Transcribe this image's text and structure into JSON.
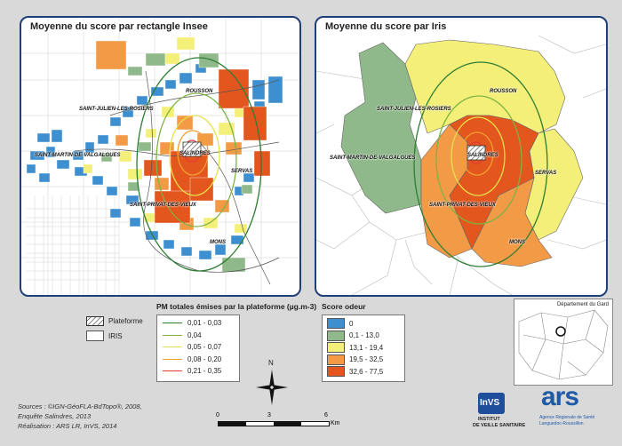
{
  "left_panel": {
    "title": "Moyenne du score par rectangle Insee"
  },
  "right_panel": {
    "title": "Moyenne du score par Iris"
  },
  "places": {
    "rousson": "ROUSSON",
    "saint_julien": "SAINT-JULIEN-LES-ROSIERS",
    "saint_martin": "SAINT-MARTIN-DE-VALGALGUES",
    "salindres": "SALINDRES",
    "servas": "SERVAS",
    "saint_privat": "SAINT-PRIVAT-DES-VIEUX",
    "mons": "MONS"
  },
  "legend_area": {
    "plateforme": "Plateforme",
    "iris": "IRIS"
  },
  "legend_pm": {
    "title": "PM totales émises par la plateforme (µg.m-3)",
    "items": [
      {
        "label": "0,01 - 0,03",
        "color": "#2e7d32"
      },
      {
        "label": "0,04",
        "color": "#7cb342"
      },
      {
        "label": "0,05 - 0,07",
        "color": "#e5e14a"
      },
      {
        "label": "0,08 - 0,20",
        "color": "#f0a030"
      },
      {
        "label": "0,21 - 0,35",
        "color": "#e53935"
      }
    ]
  },
  "legend_score": {
    "title": "Score odeur",
    "items": [
      {
        "label": "0",
        "color": "#3e8fd0"
      },
      {
        "label": "0,1 - 13,0",
        "color": "#8fb98a"
      },
      {
        "label": "13,1 - 19,4",
        "color": "#f4ef78"
      },
      {
        "label": "19,5 - 32,5",
        "color": "#f39a47"
      },
      {
        "label": "32,6 - 77,5",
        "color": "#e3561d"
      }
    ]
  },
  "inset": {
    "title": "Département du Gard"
  },
  "sources": {
    "line1": "Sources : ©IGN-GéoFLA-BdTopo®, 2008,",
    "line2": "Enquête Salindres, 2013",
    "line3": "Réalisation : ARS LR, InVS, 2014"
  },
  "north": "N",
  "scale": {
    "t0": "0",
    "t1": "3",
    "t2": "6",
    "unit": "Km"
  },
  "logos": {
    "invs": "InVS",
    "invs_sub1": "INSTITUT",
    "invs_sub2": "DE VEILLE SANITAIRE",
    "ars": "ars",
    "ars_sub1": "Agence Régionale de Santé",
    "ars_sub2": "Languedoc-Roussillon"
  }
}
